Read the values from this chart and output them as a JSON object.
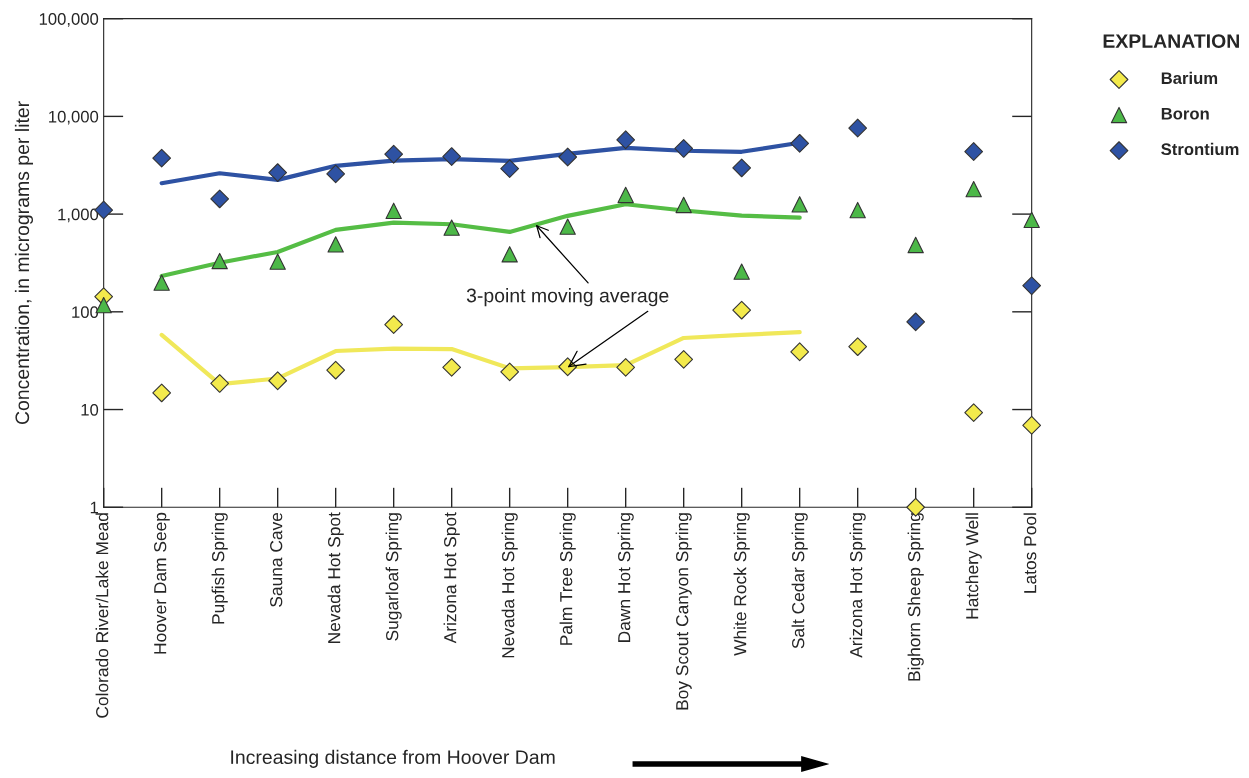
{
  "chart_data": {
    "type": "scatter",
    "categories": [
      "Colorado River/Lake Mead",
      "Hoover Dam Seep",
      "Pupfish Spring",
      "Sauna Cave",
      "Nevada Hot Spot",
      "Sugarloaf Spring",
      "Arizona Hot Spot",
      "Nevada Hot Spring",
      "Palm Tree Spring",
      "Dawn Hot Spring",
      "Boy Scout Canyon Spring",
      "White Rock Spring",
      "Salt Cedar Spring",
      "Arizona Hot Spring",
      "Bighorn Sheep Spring",
      "Hatchery Well",
      "Latos Pool"
    ],
    "series": [
      {
        "name": "Barium",
        "marker": "diamond",
        "color": "#f3ea4c",
        "values": [
          143,
          14.8,
          18.5,
          19.7,
          25.3,
          74,
          27,
          24.3,
          27.4,
          27,
          32.6,
          104,
          39,
          44,
          1,
          9.3,
          6.9
        ]
      },
      {
        "name": "Boron",
        "marker": "triangle",
        "color": "#4cb848",
        "values": [
          117,
          199,
          331,
          326,
          490,
          1080,
          727,
          388,
          745,
          1570,
          1240,
          258,
          1260,
          1100,
          483,
          1800,
          872
        ]
      },
      {
        "name": "Strontium",
        "marker": "diamond",
        "color": "#2e52a3",
        "values": [
          1100,
          3740,
          1430,
          2660,
          2580,
          4100,
          3880,
          2920,
          3840,
          5760,
          4700,
          2970,
          5300,
          7600,
          79,
          4370,
          185
        ]
      },
      {
        "type": "line",
        "marker": "none",
        "color": "#f0e85a",
        "values": [
          null,
          58,
          18.2,
          20.8,
          39.7,
          42,
          41.6,
          26.4,
          27.2,
          28.5,
          54,
          58,
          62,
          null,
          null,
          null,
          null
        ]
      },
      {
        "type": "line",
        "marker": "none",
        "color": "#55bd45",
        "values": [
          null,
          233,
          318,
          410,
          689,
          818,
          787,
          657,
          960,
          1260,
          1090,
          966,
          920,
          null,
          null,
          null,
          null
        ]
      },
      {
        "type": "line",
        "marker": "none",
        "color": "#2e52a3",
        "values": [
          null,
          2070,
          2620,
          2240,
          3120,
          3530,
          3650,
          3510,
          4140,
          4770,
          4450,
          4340,
          5370,
          null,
          null,
          null,
          null
        ]
      }
    ],
    "log": "y",
    "ylim": [
      1,
      100000
    ],
    "yticks": [
      1,
      10,
      100,
      {
        "value": 1000,
        "label": "1,000"
      },
      {
        "value": 10000,
        "label": "10,000"
      },
      {
        "value": 100000,
        "label": "100,000"
      }
    ],
    "ylabel": "Concentration, in micrograms per liter",
    "xlabel": "Increasing distance from Hoover Dam",
    "legend_title": "EXPLANATION",
    "legend": "top right",
    "grid": false,
    "annotations": [
      {
        "text": "3-point moving average",
        "x": "Palm Tree Spring",
        "y": 27
      }
    ]
  }
}
